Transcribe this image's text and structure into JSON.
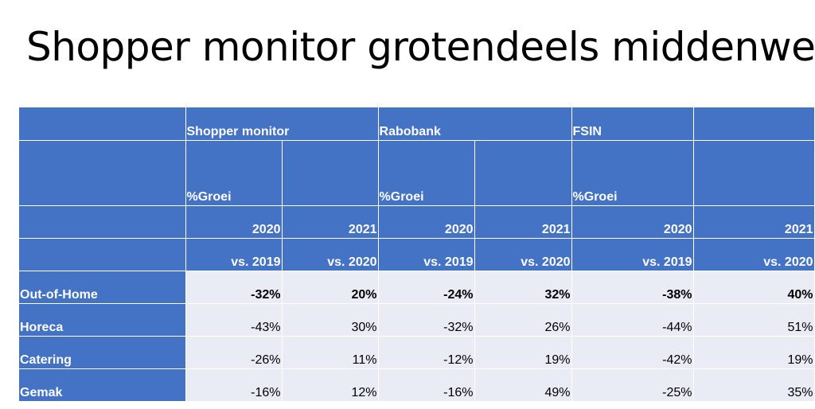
{
  "title": "Shopper monitor grotendeels middenweg",
  "sources": [
    "Shopper monitor",
    "Rabobank",
    "FSIN"
  ],
  "growth_label": "%Groei",
  "columns": [
    {
      "year": "2020",
      "comparison": "vs. 2019"
    },
    {
      "year": "2021",
      "comparison": "vs. 2020"
    },
    {
      "year": "2020",
      "comparison": "vs. 2019"
    },
    {
      "year": "2021",
      "comparison": "vs. 2020"
    },
    {
      "year": "2020",
      "comparison": "vs. 2019"
    },
    {
      "year": "2021",
      "comparison": "vs. 2020"
    }
  ],
  "rows": [
    {
      "label": "Out-of-Home",
      "bold": true,
      "values": [
        "-32%",
        "20%",
        "-24%",
        "32%",
        "-38%",
        "40%"
      ]
    },
    {
      "label": "Horeca",
      "bold": false,
      "values": [
        "-43%",
        "30%",
        "-32%",
        "26%",
        "-44%",
        "51%"
      ]
    },
    {
      "label": "Catering",
      "bold": false,
      "values": [
        "-26%",
        "11%",
        "-12%",
        "19%",
        "-42%",
        "19%"
      ]
    },
    {
      "label": "Gemak",
      "bold": false,
      "values": [
        "-16%",
        "12%",
        "-16%",
        "49%",
        "-25%",
        "35%"
      ]
    }
  ],
  "colors": {
    "header_fill": "#4472c4",
    "body_fill": "#e9ebf5",
    "header_text": "#ffffff",
    "body_text": "#000000"
  }
}
